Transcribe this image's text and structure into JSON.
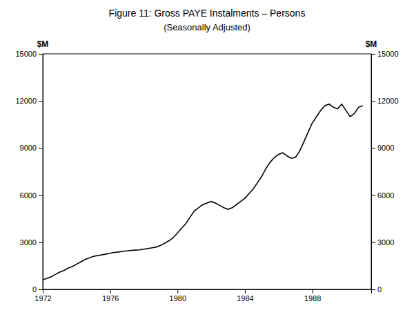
{
  "chart_data": {
    "type": "line",
    "title": "Figure 11: Gross PAYE Instalments – Persons",
    "subtitle": "(Seasonally Adjusted)",
    "ylabel": "$M",
    "y2label": "$M",
    "color": "#000000",
    "grid": false,
    "xlim": [
      1972,
      1991.5
    ],
    "xticks": [
      1972,
      1976,
      1980,
      1984,
      1988
    ],
    "ylim": [
      0,
      15000
    ],
    "yticks": [
      0,
      3000,
      6000,
      9000,
      12000,
      15000
    ],
    "y2lim": [
      0,
      15000
    ],
    "y2ticks": [
      0,
      3000,
      6000,
      9000,
      12000,
      15000
    ],
    "x": [
      1972.0,
      1972.25,
      1972.5,
      1972.75,
      1973.0,
      1973.25,
      1973.5,
      1973.75,
      1974.0,
      1974.25,
      1974.5,
      1974.75,
      1975.0,
      1975.25,
      1975.5,
      1975.75,
      1976.0,
      1976.25,
      1976.5,
      1976.75,
      1977.0,
      1977.25,
      1977.5,
      1977.75,
      1978.0,
      1978.25,
      1978.5,
      1978.75,
      1979.0,
      1979.25,
      1979.5,
      1979.75,
      1980.0,
      1980.25,
      1980.5,
      1980.75,
      1981.0,
      1981.25,
      1981.5,
      1981.75,
      1982.0,
      1982.25,
      1982.5,
      1982.75,
      1983.0,
      1983.25,
      1983.5,
      1983.75,
      1984.0,
      1984.25,
      1984.5,
      1984.75,
      1985.0,
      1985.25,
      1985.5,
      1985.75,
      1986.0,
      1986.25,
      1986.5,
      1986.75,
      1987.0,
      1987.25,
      1987.5,
      1987.75,
      1988.0,
      1988.25,
      1988.5,
      1988.75,
      1989.0,
      1989.25,
      1989.5,
      1989.75,
      1990.0,
      1990.25,
      1990.5,
      1990.75,
      1991.0
    ],
    "values": [
      600,
      700,
      800,
      950,
      1100,
      1200,
      1350,
      1450,
      1600,
      1750,
      1900,
      2000,
      2100,
      2150,
      2200,
      2250,
      2300,
      2350,
      2380,
      2420,
      2450,
      2480,
      2500,
      2520,
      2560,
      2600,
      2650,
      2700,
      2800,
      2950,
      3100,
      3300,
      3600,
      3900,
      4200,
      4600,
      5000,
      5200,
      5400,
      5500,
      5600,
      5500,
      5350,
      5200,
      5100,
      5200,
      5400,
      5600,
      5800,
      6100,
      6400,
      6800,
      7200,
      7700,
      8100,
      8400,
      8600,
      8700,
      8500,
      8350,
      8400,
      8800,
      9400,
      10000,
      10600,
      11000,
      11400,
      11700,
      11800,
      11600,
      11500,
      11800,
      11400,
      11000,
      11200,
      11600,
      11700
    ]
  }
}
